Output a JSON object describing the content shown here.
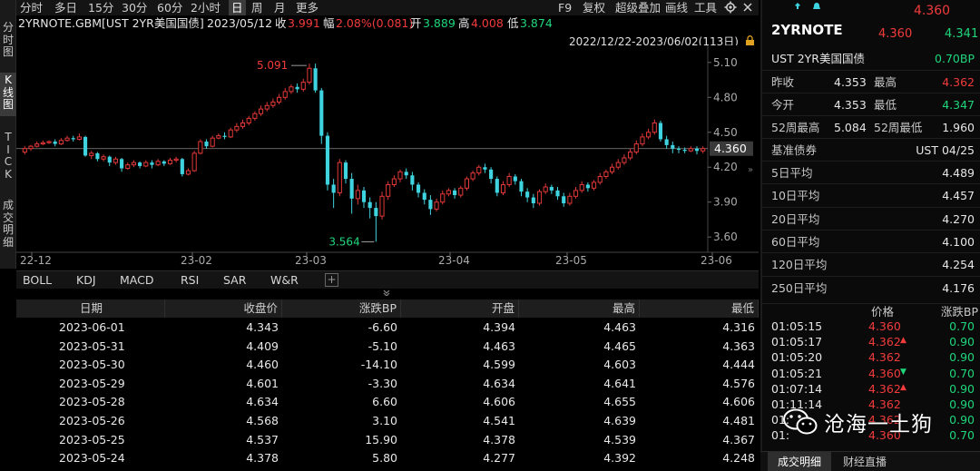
{
  "colors": {
    "up": "#f23b3b",
    "down": "#1fd67b",
    "bull_candle": "#e23838",
    "bear_candle": "#3fd3e0"
  },
  "left_tabs": [
    {
      "label": "分\n时\n图",
      "active": false
    },
    {
      "label": "K\n线\n图",
      "active": true
    },
    {
      "label": "T\nI\nC\nK",
      "active": false
    },
    {
      "label": "成\n交\n明\n细",
      "active": false
    }
  ],
  "periods": [
    {
      "label": "分时",
      "active": false
    },
    {
      "label": "多日",
      "active": false
    },
    {
      "label": "15分",
      "active": false
    },
    {
      "label": "30分",
      "active": false
    },
    {
      "label": "60分",
      "active": false
    },
    {
      "label": "2小时",
      "active": false
    },
    {
      "label": "日",
      "active": true
    },
    {
      "label": "周",
      "active": false
    },
    {
      "label": "月",
      "active": false
    },
    {
      "label": "更多",
      "active": false
    }
  ],
  "toolbar": {
    "f9": "F9",
    "restore": "复权",
    "overlay": "超级叠加",
    "draw": "画线",
    "tools": "工具",
    "gear_icon": "gear-icon",
    "close_icon": "close-icon"
  },
  "info": {
    "symbol": "2YRNOTE.GBM[UST 2YR美国国债]",
    "date": "2023/05/12",
    "close_label": "收",
    "close": "3.991",
    "change_label": "幅",
    "change": "2.08%(0.081)",
    "open_label": "开",
    "open": "3.889",
    "high_label": "高",
    "high": "4.008",
    "low_label": "低",
    "low": "3.874"
  },
  "range": "2022/12/22-2023/06/02(113日)",
  "chart_data": {
    "type": "candlestick",
    "y_ticks": [
      "5.10",
      "4.80",
      "4.50",
      "4.20",
      "3.90",
      "3.60"
    ],
    "x_ticks": [
      "22-12",
      "23-02",
      "23-03",
      "23-04",
      "23-05",
      "23-06"
    ],
    "ylim": [
      3.5,
      5.2
    ],
    "current_price": "4.360",
    "max_label": "5.091",
    "min_label": "3.564",
    "candles": [
      [
        4.33,
        4.36,
        4.31,
        4.38
      ],
      [
        4.36,
        4.38,
        4.34,
        4.39
      ],
      [
        4.38,
        4.4,
        4.37,
        4.42
      ],
      [
        4.4,
        4.41,
        4.39,
        4.43
      ],
      [
        4.41,
        4.42,
        4.4,
        4.43
      ],
      [
        4.42,
        4.4,
        4.38,
        4.44
      ],
      [
        4.4,
        4.43,
        4.39,
        4.45
      ],
      [
        4.43,
        4.45,
        4.42,
        4.47
      ],
      [
        4.45,
        4.44,
        4.42,
        4.47
      ],
      [
        4.44,
        4.46,
        4.43,
        4.49
      ],
      [
        4.46,
        4.3,
        4.29,
        4.47
      ],
      [
        4.3,
        4.32,
        4.27,
        4.34
      ],
      [
        4.32,
        4.27,
        4.25,
        4.33
      ],
      [
        4.27,
        4.29,
        4.25,
        4.31
      ],
      [
        4.29,
        4.24,
        4.21,
        4.3
      ],
      [
        4.24,
        4.27,
        4.22,
        4.29
      ],
      [
        4.27,
        4.19,
        4.16,
        4.28
      ],
      [
        4.19,
        4.22,
        4.18,
        4.24
      ],
      [
        4.22,
        4.24,
        4.2,
        4.26
      ],
      [
        4.24,
        4.21,
        4.19,
        4.25
      ],
      [
        4.21,
        4.24,
        4.2,
        4.26
      ],
      [
        4.24,
        4.22,
        4.19,
        4.26
      ],
      [
        4.22,
        4.25,
        4.21,
        4.27
      ],
      [
        4.25,
        4.23,
        4.21,
        4.26
      ],
      [
        4.23,
        4.26,
        4.22,
        4.28
      ],
      [
        4.26,
        4.27,
        4.24,
        4.29
      ],
      [
        4.27,
        4.14,
        4.12,
        4.28
      ],
      [
        4.14,
        4.17,
        4.13,
        4.19
      ],
      [
        4.17,
        4.32,
        4.16,
        4.34
      ],
      [
        4.32,
        4.42,
        4.31,
        4.44
      ],
      [
        4.42,
        4.38,
        4.36,
        4.44
      ],
      [
        4.38,
        4.45,
        4.37,
        4.47
      ],
      [
        4.45,
        4.47,
        4.44,
        4.49
      ],
      [
        4.47,
        4.46,
        4.44,
        4.5
      ],
      [
        4.46,
        4.52,
        4.45,
        4.54
      ],
      [
        4.52,
        4.55,
        4.5,
        4.58
      ],
      [
        4.55,
        4.58,
        4.53,
        4.61
      ],
      [
        4.58,
        4.62,
        4.56,
        4.64
      ],
      [
        4.62,
        4.66,
        4.6,
        4.68
      ],
      [
        4.66,
        4.7,
        4.64,
        4.73
      ],
      [
        4.7,
        4.73,
        4.68,
        4.76
      ],
      [
        4.73,
        4.76,
        4.71,
        4.79
      ],
      [
        4.76,
        4.8,
        4.74,
        4.83
      ],
      [
        4.8,
        4.85,
        4.78,
        4.88
      ],
      [
        4.85,
        4.89,
        4.83,
        4.91
      ],
      [
        4.89,
        4.87,
        4.84,
        4.92
      ],
      [
        4.87,
        4.93,
        4.85,
        4.96
      ],
      [
        4.93,
        5.05,
        4.91,
        5.09
      ],
      [
        5.05,
        4.86,
        4.84,
        5.09
      ],
      [
        4.86,
        4.47,
        4.4,
        4.88
      ],
      [
        4.47,
        4.05,
        4.0,
        4.5
      ],
      [
        4.05,
        3.98,
        3.85,
        4.1
      ],
      [
        3.98,
        4.24,
        3.95,
        4.27
      ],
      [
        4.24,
        4.1,
        4.06,
        4.26
      ],
      [
        4.1,
        3.93,
        3.8,
        4.15
      ],
      [
        3.93,
        4.0,
        3.88,
        4.05
      ],
      [
        4.0,
        3.9,
        3.85,
        4.03
      ],
      [
        3.9,
        3.85,
        3.76,
        3.94
      ],
      [
        3.85,
        3.78,
        3.56,
        3.9
      ],
      [
        3.78,
        3.95,
        3.75,
        3.99
      ],
      [
        3.95,
        4.05,
        3.92,
        4.08
      ],
      [
        4.05,
        4.1,
        4.03,
        4.13
      ],
      [
        4.1,
        4.16,
        4.07,
        4.18
      ],
      [
        4.16,
        4.13,
        4.1,
        4.19
      ],
      [
        4.13,
        4.05,
        4.0,
        4.16
      ],
      [
        4.05,
        3.98,
        3.94,
        4.07
      ],
      [
        3.98,
        3.92,
        3.88,
        4.01
      ],
      [
        3.92,
        3.84,
        3.79,
        3.96
      ],
      [
        3.84,
        3.9,
        3.82,
        3.93
      ],
      [
        3.9,
        3.97,
        3.88,
        4.0
      ],
      [
        3.97,
        4.0,
        3.95,
        4.02
      ],
      [
        4.0,
        3.96,
        3.93,
        4.02
      ],
      [
        3.96,
        4.02,
        3.94,
        4.04
      ],
      [
        4.02,
        4.1,
        4.0,
        4.12
      ],
      [
        4.1,
        4.15,
        4.08,
        4.17
      ],
      [
        4.15,
        4.2,
        4.13,
        4.22
      ],
      [
        4.2,
        4.18,
        4.15,
        4.23
      ],
      [
        4.18,
        4.1,
        4.06,
        4.2
      ],
      [
        4.1,
        3.98,
        3.95,
        4.12
      ],
      [
        3.98,
        4.05,
        3.96,
        4.08
      ],
      [
        4.05,
        4.12,
        4.03,
        4.15
      ],
      [
        4.12,
        4.08,
        4.05,
        4.14
      ],
      [
        4.08,
        3.99,
        3.95,
        4.1
      ],
      [
        3.99,
        3.94,
        3.9,
        4.02
      ],
      [
        3.94,
        3.89,
        3.85,
        3.97
      ],
      [
        3.89,
        3.99,
        3.87,
        4.01
      ],
      [
        3.99,
        4.03,
        3.97,
        4.06
      ],
      [
        4.03,
        4.0,
        3.97,
        4.05
      ],
      [
        4.0,
        3.95,
        3.92,
        4.03
      ],
      [
        3.95,
        3.89,
        3.86,
        3.98
      ],
      [
        3.89,
        3.95,
        3.87,
        3.98
      ],
      [
        3.95,
        4.0,
        3.93,
        4.03
      ],
      [
        4.0,
        4.05,
        3.98,
        4.08
      ],
      [
        4.05,
        4.02,
        3.99,
        4.07
      ],
      [
        4.02,
        4.07,
        4.0,
        4.09
      ],
      [
        4.07,
        4.12,
        4.05,
        4.15
      ],
      [
        4.12,
        4.16,
        4.1,
        4.18
      ],
      [
        4.16,
        4.2,
        4.14,
        4.23
      ],
      [
        4.2,
        4.24,
        4.18,
        4.27
      ],
      [
        4.24,
        4.28,
        4.22,
        4.31
      ],
      [
        4.28,
        4.33,
        4.26,
        4.36
      ],
      [
        4.33,
        4.4,
        4.31,
        4.43
      ],
      [
        4.4,
        4.46,
        4.38,
        4.49
      ],
      [
        4.46,
        4.5,
        4.44,
        4.53
      ],
      [
        4.5,
        4.58,
        4.48,
        4.61
      ],
      [
        4.58,
        4.44,
        4.42,
        4.6
      ],
      [
        4.44,
        4.39,
        4.36,
        4.47
      ],
      [
        4.39,
        4.36,
        4.32,
        4.42
      ],
      [
        4.36,
        4.35,
        4.32,
        4.38
      ],
      [
        4.35,
        4.34,
        4.32,
        4.37
      ],
      [
        4.34,
        4.36,
        4.33,
        4.38
      ],
      [
        4.36,
        4.34,
        4.31,
        4.38
      ],
      [
        4.34,
        4.36,
        4.32,
        4.38
      ]
    ]
  },
  "indicator_tabs": [
    "BOLL",
    "KDJ",
    "MACD",
    "RSI",
    "SAR",
    "W&R"
  ],
  "table": {
    "headers": [
      "日期",
      "收盘价",
      "涨跌BP",
      "开盘",
      "最高",
      "最低"
    ],
    "rows": [
      [
        "2023-06-01",
        "4.343",
        "-6.60",
        "4.394",
        "4.463",
        "4.316"
      ],
      [
        "2023-05-31",
        "4.409",
        "-5.10",
        "4.463",
        "4.465",
        "4.363"
      ],
      [
        "2023-05-30",
        "4.460",
        "-14.10",
        "4.599",
        "4.603",
        "4.444"
      ],
      [
        "2023-05-29",
        "4.601",
        "-3.30",
        "4.634",
        "4.641",
        "4.576"
      ],
      [
        "2023-05-28",
        "4.634",
        "6.60",
        "4.606",
        "4.655",
        "4.606"
      ],
      [
        "2023-05-26",
        "4.568",
        "3.10",
        "4.541",
        "4.639",
        "4.481"
      ],
      [
        "2023-05-25",
        "4.537",
        "15.90",
        "4.378",
        "4.539",
        "4.367"
      ],
      [
        "2023-05-24",
        "4.378",
        "5.80",
        "4.277",
        "4.392",
        "4.248"
      ]
    ]
  },
  "quote": {
    "top_price": "4.360",
    "name": "2YRNOTE",
    "price": "4.360",
    "bid": "4.341",
    "desc": "UST 2YR美国国债",
    "change_bp": "0.70BP",
    "prev_close_label": "昨收",
    "prev_close": "4.353",
    "high_label": "最高",
    "high": "4.362",
    "open_label": "今开",
    "open": "4.353",
    "low_label": "最低",
    "low": "4.347",
    "w52h_label": "52周最高",
    "w52h": "5.084",
    "w52l_label": "52周最低",
    "w52l": "1.960",
    "bench_label": "基准债券",
    "bench": "UST 04/25",
    "ma": [
      {
        "label": "5日平均",
        "value": "4.489"
      },
      {
        "label": "10日平均",
        "value": "4.457"
      },
      {
        "label": "20日平均",
        "value": "4.270"
      },
      {
        "label": "60日平均",
        "value": "4.100"
      },
      {
        "label": "120日平均",
        "value": "4.254"
      },
      {
        "label": "250日平均",
        "value": "4.176"
      }
    ]
  },
  "ticks": {
    "price_header": "价格",
    "bp_header": "涨跌BP",
    "rows": [
      {
        "time": "01:05:15",
        "price": "4.360",
        "dir": "",
        "bp": "0.70"
      },
      {
        "time": "01:05:17",
        "price": "4.362",
        "dir": "up",
        "bp": "0.90"
      },
      {
        "time": "01:05:20",
        "price": "4.362",
        "dir": "",
        "bp": "0.90"
      },
      {
        "time": "01:05:21",
        "price": "4.360",
        "dir": "down",
        "bp": "0.70"
      },
      {
        "time": "01:07:14",
        "price": "4.362",
        "dir": "up",
        "bp": "0.90"
      },
      {
        "time": "01:11:14",
        "price": "4.362",
        "dir": "",
        "bp": "0.90"
      },
      {
        "time": "01:",
        "price": "4.362",
        "dir": "",
        "bp": "0.90"
      },
      {
        "time": "01:",
        "price": "4.360",
        "dir": "",
        "bp": "0.70"
      }
    ]
  },
  "bottom_tabs": [
    {
      "label": "成交明细",
      "active": true
    },
    {
      "label": "财经直播",
      "active": false
    }
  ],
  "watermark": {
    "text": "沧海一土狗",
    "icon": "wechat-icon"
  }
}
